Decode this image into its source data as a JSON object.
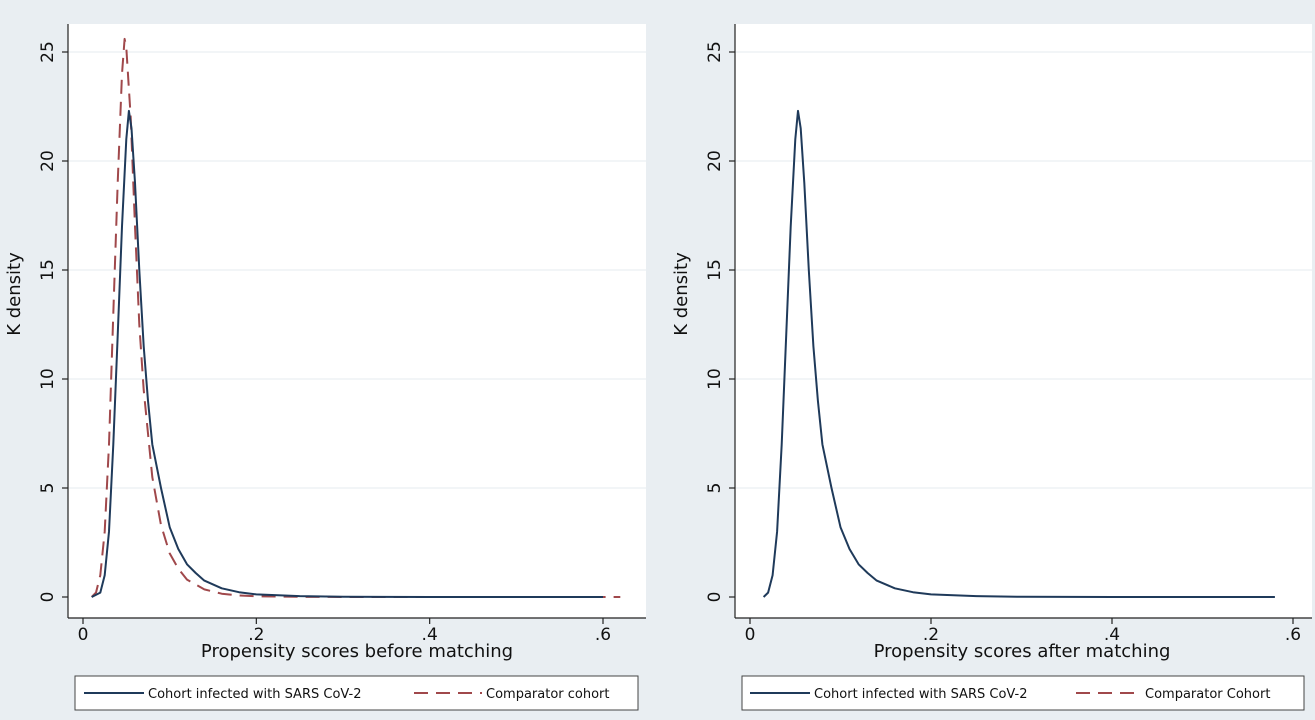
{
  "chart_data": [
    {
      "type": "line",
      "xlabel": "Propensity scores before matching",
      "ylabel": "K density",
      "xlim": [
        0,
        0.63
      ],
      "ylim": [
        0,
        26
      ],
      "x_ticks": [
        {
          "value": 0,
          "label": "0"
        },
        {
          "value": 0.2,
          "label": ".2"
        },
        {
          "value": 0.4,
          "label": ".4"
        },
        {
          "value": 0.6,
          "label": ".6"
        }
      ],
      "y_ticks": [
        {
          "value": 0,
          "label": "0"
        },
        {
          "value": 5,
          "label": "5"
        },
        {
          "value": 10,
          "label": "10"
        },
        {
          "value": 15,
          "label": "15"
        },
        {
          "value": 20,
          "label": "20"
        },
        {
          "value": 25,
          "label": "25"
        }
      ],
      "grid": true,
      "legend_position": "bottom",
      "series": [
        {
          "name": "Cohort infected with SARS CoV-2",
          "color": "#1f3a5a",
          "dash": "solid",
          "points": [
            [
              0.01,
              0
            ],
            [
              0.02,
              0.2
            ],
            [
              0.025,
              1
            ],
            [
              0.03,
              3
            ],
            [
              0.035,
              7
            ],
            [
              0.04,
              12
            ],
            [
              0.045,
              17
            ],
            [
              0.05,
              21
            ],
            [
              0.053,
              22.3
            ],
            [
              0.056,
              21.5
            ],
            [
              0.06,
              19
            ],
            [
              0.065,
              15
            ],
            [
              0.07,
              11.5
            ],
            [
              0.075,
              9
            ],
            [
              0.08,
              7
            ],
            [
              0.09,
              5
            ],
            [
              0.1,
              3.2
            ],
            [
              0.11,
              2.2
            ],
            [
              0.12,
              1.5
            ],
            [
              0.13,
              1.1
            ],
            [
              0.14,
              0.75
            ],
            [
              0.16,
              0.4
            ],
            [
              0.18,
              0.22
            ],
            [
              0.2,
              0.12
            ],
            [
              0.25,
              0.04
            ],
            [
              0.3,
              0.01
            ],
            [
              0.4,
              0
            ],
            [
              0.5,
              0
            ],
            [
              0.6,
              0
            ]
          ]
        },
        {
          "name": "Comparator cohort",
          "color": "#a0484b",
          "dash": "dashed",
          "points": [
            [
              0.01,
              0
            ],
            [
              0.015,
              0.2
            ],
            [
              0.02,
              1
            ],
            [
              0.025,
              3
            ],
            [
              0.03,
              7
            ],
            [
              0.035,
              13
            ],
            [
              0.04,
              19
            ],
            [
              0.045,
              24
            ],
            [
              0.048,
              25.6
            ],
            [
              0.05,
              25.2
            ],
            [
              0.055,
              22
            ],
            [
              0.06,
              17
            ],
            [
              0.065,
              12.5
            ],
            [
              0.07,
              9.5
            ],
            [
              0.08,
              5.5
            ],
            [
              0.09,
              3.3
            ],
            [
              0.1,
              2
            ],
            [
              0.11,
              1.3
            ],
            [
              0.12,
              0.8
            ],
            [
              0.14,
              0.35
            ],
            [
              0.16,
              0.15
            ],
            [
              0.18,
              0.07
            ],
            [
              0.2,
              0.03
            ],
            [
              0.25,
              0.01
            ],
            [
              0.3,
              0
            ],
            [
              0.4,
              0
            ],
            [
              0.5,
              0
            ],
            [
              0.62,
              0
            ]
          ]
        }
      ]
    },
    {
      "type": "line",
      "xlabel": "Propensity scores after matching",
      "ylabel": "K density",
      "xlim": [
        0,
        0.62
      ],
      "ylim": [
        0,
        26
      ],
      "x_ticks": [
        {
          "value": 0,
          "label": "0"
        },
        {
          "value": 0.2,
          "label": ".2"
        },
        {
          "value": 0.4,
          "label": ".4"
        },
        {
          "value": 0.6,
          "label": ".6"
        }
      ],
      "y_ticks": [
        {
          "value": 0,
          "label": "0"
        },
        {
          "value": 5,
          "label": "5"
        },
        {
          "value": 10,
          "label": "10"
        },
        {
          "value": 15,
          "label": "15"
        },
        {
          "value": 20,
          "label": "20"
        },
        {
          "value": 25,
          "label": "25"
        }
      ],
      "grid": true,
      "legend_position": "bottom",
      "series": [
        {
          "name": "Cohort infected with SARS CoV-2",
          "color": "#1f3a5a",
          "dash": "solid",
          "points": [
            [
              0.015,
              0
            ],
            [
              0.02,
              0.2
            ],
            [
              0.025,
              1
            ],
            [
              0.03,
              3
            ],
            [
              0.035,
              7
            ],
            [
              0.04,
              12
            ],
            [
              0.045,
              17
            ],
            [
              0.05,
              21
            ],
            [
              0.053,
              22.3
            ],
            [
              0.056,
              21.5
            ],
            [
              0.06,
              19
            ],
            [
              0.065,
              15
            ],
            [
              0.07,
              11.5
            ],
            [
              0.075,
              9
            ],
            [
              0.08,
              7
            ],
            [
              0.09,
              5
            ],
            [
              0.1,
              3.2
            ],
            [
              0.11,
              2.2
            ],
            [
              0.12,
              1.5
            ],
            [
              0.13,
              1.1
            ],
            [
              0.14,
              0.75
            ],
            [
              0.16,
              0.4
            ],
            [
              0.18,
              0.22
            ],
            [
              0.2,
              0.12
            ],
            [
              0.25,
              0.04
            ],
            [
              0.3,
              0.01
            ],
            [
              0.4,
              0
            ],
            [
              0.5,
              0
            ],
            [
              0.58,
              0
            ]
          ]
        },
        {
          "name": "Comparator Cohort",
          "color": "#a0484b",
          "dash": "dashed",
          "points": [
            [
              0.015,
              0
            ],
            [
              0.02,
              0.2
            ],
            [
              0.025,
              1
            ],
            [
              0.03,
              3
            ],
            [
              0.035,
              7
            ],
            [
              0.04,
              12
            ],
            [
              0.045,
              17
            ],
            [
              0.05,
              21
            ],
            [
              0.053,
              22.3
            ],
            [
              0.056,
              21.5
            ],
            [
              0.06,
              19
            ],
            [
              0.065,
              15
            ],
            [
              0.07,
              11.5
            ],
            [
              0.075,
              9
            ],
            [
              0.08,
              7
            ],
            [
              0.09,
              5
            ],
            [
              0.1,
              3.2
            ],
            [
              0.11,
              2.2
            ],
            [
              0.12,
              1.5
            ],
            [
              0.13,
              1.1
            ],
            [
              0.14,
              0.75
            ],
            [
              0.16,
              0.4
            ],
            [
              0.18,
              0.22
            ],
            [
              0.2,
              0.12
            ],
            [
              0.25,
              0.04
            ],
            [
              0.3,
              0.01
            ],
            [
              0.4,
              0
            ],
            [
              0.5,
              0
            ],
            [
              0.58,
              0
            ]
          ]
        }
      ]
    }
  ]
}
